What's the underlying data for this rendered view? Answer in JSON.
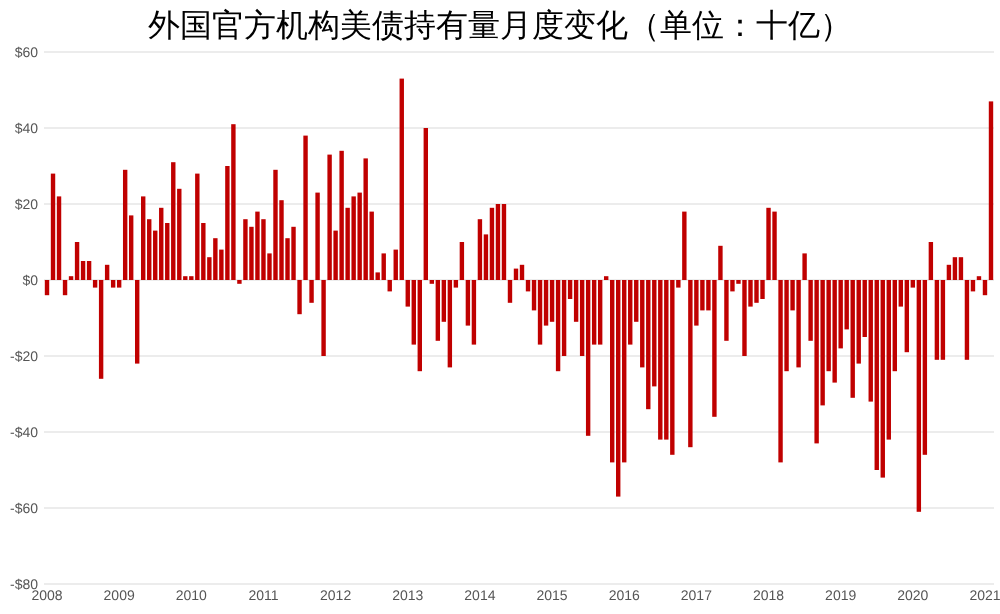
{
  "chart_data": {
    "type": "bar",
    "title": "外国官方机构美债持有量月度变化（单位：十亿）",
    "categories": [
      "2008",
      null,
      null,
      null,
      null,
      null,
      null,
      null,
      null,
      null,
      null,
      null,
      "2009",
      null,
      null,
      null,
      null,
      null,
      null,
      null,
      null,
      null,
      null,
      null,
      "2010",
      null,
      null,
      null,
      null,
      null,
      null,
      null,
      null,
      null,
      null,
      null,
      "2011",
      null,
      null,
      null,
      null,
      null,
      null,
      null,
      null,
      null,
      null,
      null,
      "2012",
      null,
      null,
      null,
      null,
      null,
      null,
      null,
      null,
      null,
      null,
      null,
      "2013",
      null,
      null,
      null,
      null,
      null,
      null,
      null,
      null,
      null,
      null,
      null,
      "2014",
      null,
      null,
      null,
      null,
      null,
      null,
      null,
      null,
      null,
      null,
      null,
      "2015",
      null,
      null,
      null,
      null,
      null,
      null,
      null,
      null,
      null,
      null,
      null,
      "2016",
      null,
      null,
      null,
      null,
      null,
      null,
      null,
      null,
      null,
      null,
      null,
      "2017",
      null,
      null,
      null,
      null,
      null,
      null,
      null,
      null,
      null,
      null,
      null,
      "2018",
      null,
      null,
      null,
      null,
      null,
      null,
      null,
      null,
      null,
      null,
      null,
      "2019",
      null,
      null,
      null,
      null,
      null,
      null,
      null,
      null,
      null,
      null,
      null,
      "2020",
      null,
      null,
      null,
      null,
      null,
      null,
      null,
      null,
      null,
      null,
      null,
      "2021",
      null
    ],
    "values": [
      -4,
      28,
      22,
      -4,
      1,
      10,
      5,
      5,
      -2,
      -26,
      4,
      -2,
      -2,
      29,
      17,
      -22,
      22,
      16,
      13,
      19,
      15,
      31,
      24,
      1,
      1,
      28,
      15,
      6,
      11,
      8,
      30,
      41,
      -1,
      16,
      14,
      18,
      16,
      7,
      29,
      21,
      11,
      14,
      -9,
      38,
      -6,
      23,
      -20,
      33,
      13,
      34,
      19,
      22,
      23,
      32,
      18,
      2,
      7,
      -3,
      8,
      53,
      -7,
      -17,
      -24,
      40,
      -1,
      -16,
      -11,
      -23,
      -2,
      10,
      -12,
      -17,
      16,
      12,
      19,
      20,
      20,
      -6,
      3,
      4,
      -3,
      -8,
      -17,
      -12,
      -11,
      -24,
      -20,
      -5,
      -11,
      -20,
      -41,
      -17,
      -17,
      1,
      -48,
      -57,
      -48,
      -17,
      -11,
      -23,
      -34,
      -28,
      -42,
      -42,
      -46,
      -2,
      18,
      -44,
      -12,
      -8,
      -8,
      -36,
      9,
      -16,
      -3,
      -1,
      -20,
      -7,
      -6,
      -5,
      19,
      18,
      -48,
      -24,
      -8,
      -23,
      7,
      -16,
      -43,
      -33,
      -24,
      -27,
      -18,
      -13,
      -31,
      -22,
      -15,
      -32,
      -50,
      -52,
      -42,
      -24,
      -7,
      -19,
      -2,
      -61,
      -46,
      10,
      -21,
      -21,
      4,
      6,
      6,
      -21,
      -3,
      1,
      -4,
      47
    ],
    "color": "#c00000",
    "ylim": [
      -80,
      60
    ],
    "yticks": [
      {
        "value": -80,
        "label": "-$80"
      },
      {
        "value": -60,
        "label": "-$60"
      },
      {
        "value": -40,
        "label": "-$40"
      },
      {
        "value": -20,
        "label": "-$20"
      },
      {
        "value": 0,
        "label": "$0"
      },
      {
        "value": 20,
        "label": "$20"
      },
      {
        "value": 40,
        "label": "$40"
      },
      {
        "value": 60,
        "label": "$60"
      }
    ],
    "grid": "y"
  }
}
